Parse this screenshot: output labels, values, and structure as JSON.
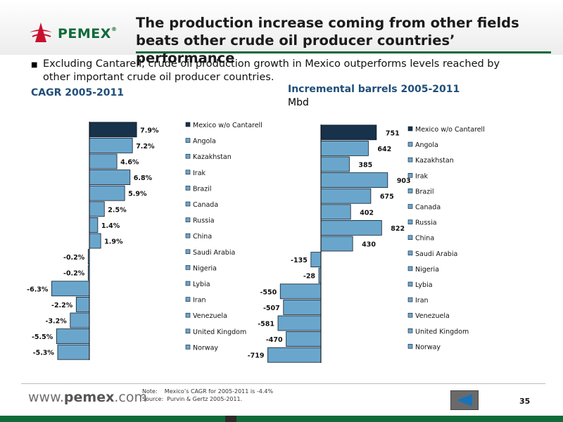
{
  "header": {
    "logo_text": "PEMEX",
    "logo_mark": "®",
    "title": "The production increase coming from other fields beats other crude oil producer countries’ performance"
  },
  "bullet": "Excluding Cantarell, crude oil production growth in Mexico outperforms levels reached by other important crude oil producer countries.",
  "colors": {
    "first_bar": "#17324a",
    "bar": "#6aa6cc",
    "brand_green": "#0f6b3a",
    "subtitle": "#1f4e79"
  },
  "chart_data": [
    {
      "type": "bar",
      "orientation": "horizontal",
      "title": "CAGR 2005-2011",
      "categories": [
        "Mexico w/o Cantarell",
        "Angola",
        "Kazakhstan",
        "Irak",
        "Brazil",
        "Canada",
        "Russia",
        "China",
        "Saudi Arabia",
        "Nigeria",
        "Lybia",
        "Iran",
        "Venezuela",
        "United Kingdom",
        "Norway"
      ],
      "values": [
        7.9,
        7.2,
        4.6,
        6.8,
        5.9,
        2.5,
        1.4,
        1.9,
        -0.2,
        -0.2,
        -6.3,
        -2.2,
        -3.2,
        -5.5,
        -5.3
      ],
      "value_labels": [
        "7.9%",
        "7.2%",
        "4.6%",
        "6.8%",
        "5.9%",
        "2.5%",
        "1.4%",
        "1.9%",
        "-0.2%",
        "-0.2%",
        "-6.3%",
        "-2.2%",
        "-3.2%",
        "-5.5%",
        "-5.3%"
      ],
      "legend_position": "right"
    },
    {
      "type": "bar",
      "orientation": "horizontal",
      "title": "Incremental barrels 2005-2011",
      "subtitle": "Mbd",
      "categories": [
        "Mexico w/o Cantarell",
        "Angola",
        "Kazakhstan",
        "Irak",
        "Brazil",
        "Canada",
        "Russia",
        "China",
        "Saudi Arabia",
        "Nigeria",
        "Lybia",
        "Iran",
        "Venezuela",
        "United Kingdom",
        "Norway"
      ],
      "values": [
        751,
        642,
        385,
        903,
        675,
        402,
        822,
        430,
        -135,
        -28,
        -550,
        -507,
        -581,
        -470,
        -719
      ],
      "value_labels": [
        "751",
        "642",
        "385",
        "903",
        "675",
        "402",
        "822",
        "430",
        "-135",
        "-28",
        "-550",
        "-507",
        "-581",
        "-470",
        "-719"
      ],
      "legend_position": "right"
    }
  ],
  "footer": {
    "website_prefix": "www.",
    "website_brand": "pemex",
    "website_suffix": ".com",
    "note": "Note:    Mexico’s CAGR for 2005-2011 is -4.4%\nSource:  Purvin & Gertz 2005-2011.",
    "page_number": "35"
  }
}
